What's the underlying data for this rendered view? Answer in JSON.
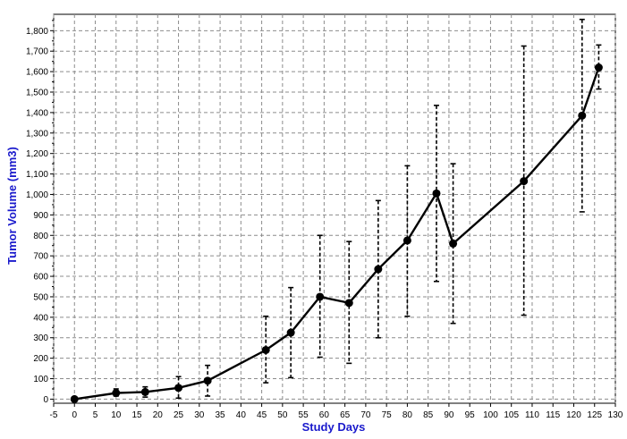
{
  "chart_data": {
    "type": "line",
    "xlabel": "Study Days",
    "ylabel": "Tumor Volume (mm3)",
    "xlim": [
      -5,
      130
    ],
    "ylim": [
      -20,
      1880
    ],
    "x_ticks": [
      "-5",
      "0",
      "5",
      "10",
      "15",
      "20",
      "25",
      "30",
      "35",
      "40",
      "45",
      "50",
      "55",
      "60",
      "65",
      "70",
      "75",
      "80",
      "85",
      "90",
      "95",
      "100",
      "105",
      "110",
      "115",
      "120",
      "125",
      "130"
    ],
    "y_ticks": [
      "0",
      "100",
      "200",
      "300",
      "400",
      "500",
      "600",
      "700",
      "800",
      "900",
      "1,000",
      "1,100",
      "1,200",
      "1,300",
      "1,400",
      "1,500",
      "1,600",
      "1,700",
      "1,800"
    ],
    "grid": true,
    "series_color": "#000000",
    "axis_title_color": "#1a1acc",
    "points": [
      {
        "x": 0,
        "y": 0,
        "lo": 0,
        "hi": 0
      },
      {
        "x": 10,
        "y": 30,
        "lo": 15,
        "hi": 50
      },
      {
        "x": 17,
        "y": 35,
        "lo": 10,
        "hi": 60
      },
      {
        "x": 25,
        "y": 55,
        "lo": 5,
        "hi": 110
      },
      {
        "x": 32,
        "y": 90,
        "lo": 15,
        "hi": 165
      },
      {
        "x": 46,
        "y": 240,
        "lo": 80,
        "hi": 405
      },
      {
        "x": 52,
        "y": 325,
        "lo": 105,
        "hi": 545
      },
      {
        "x": 59,
        "y": 500,
        "lo": 205,
        "hi": 800
      },
      {
        "x": 66,
        "y": 470,
        "lo": 175,
        "hi": 770
      },
      {
        "x": 73,
        "y": 635,
        "lo": 300,
        "hi": 970
      },
      {
        "x": 80,
        "y": 775,
        "lo": 405,
        "hi": 1140
      },
      {
        "x": 87,
        "y": 1005,
        "lo": 575,
        "hi": 1435
      },
      {
        "x": 91,
        "y": 760,
        "lo": 370,
        "hi": 1150
      },
      {
        "x": 108,
        "y": 1065,
        "lo": 410,
        "hi": 1725
      },
      {
        "x": 122,
        "y": 1385,
        "lo": 915,
        "hi": 1855
      },
      {
        "x": 126,
        "y": 1620,
        "lo": 1515,
        "hi": 1730
      }
    ]
  }
}
